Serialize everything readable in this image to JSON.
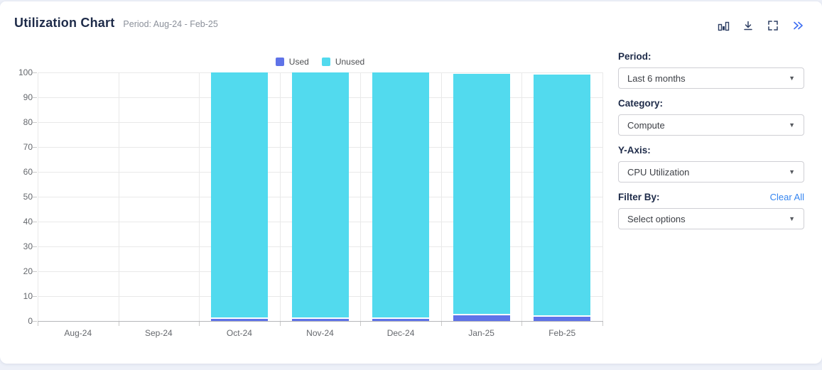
{
  "colors": {
    "page_bg": "#edf0f8",
    "card_bg": "#ffffff",
    "title": "#1e2b49",
    "subtitle": "#8b909a",
    "icon": "#2d3e63",
    "chevron_icon": "#3f6ff2",
    "link": "#3585f0",
    "used": "#5f73e8",
    "unused": "#52daee"
  },
  "header": {
    "title": "Utilization Chart",
    "subtitle": "Period: Aug-24 - Feb-25",
    "toolbar_icons": [
      "bar-chart-icon",
      "download-icon",
      "fullscreen-icon",
      "double-chevron-right-icon"
    ]
  },
  "chart_data": {
    "type": "bar",
    "stacked": true,
    "title": "",
    "xlabel": "",
    "ylabel": "",
    "categories": [
      "Aug-24",
      "Sep-24",
      "Oct-24",
      "Nov-24",
      "Dec-24",
      "Jan-25",
      "Feb-25"
    ],
    "series": [
      {
        "name": "Used",
        "color": "#5f73e8",
        "values": [
          0,
          0,
          1,
          1,
          1,
          2.3,
          1.7
        ]
      },
      {
        "name": "Unused",
        "color": "#52daee",
        "values": [
          0,
          0,
          99,
          99,
          99,
          97,
          97.5
        ]
      }
    ],
    "ylim": [
      0,
      100
    ],
    "ytick_step": 10,
    "grid": true,
    "legend_position": "top-center"
  },
  "sidebar": {
    "period": {
      "label": "Period:",
      "value": "Last 6 months"
    },
    "category": {
      "label": "Category:",
      "value": "Compute"
    },
    "yaxis": {
      "label": "Y-Axis:",
      "value": "CPU Utilization"
    },
    "filter": {
      "label": "Filter By:",
      "clear_label": "Clear All",
      "value": "Select options"
    }
  }
}
